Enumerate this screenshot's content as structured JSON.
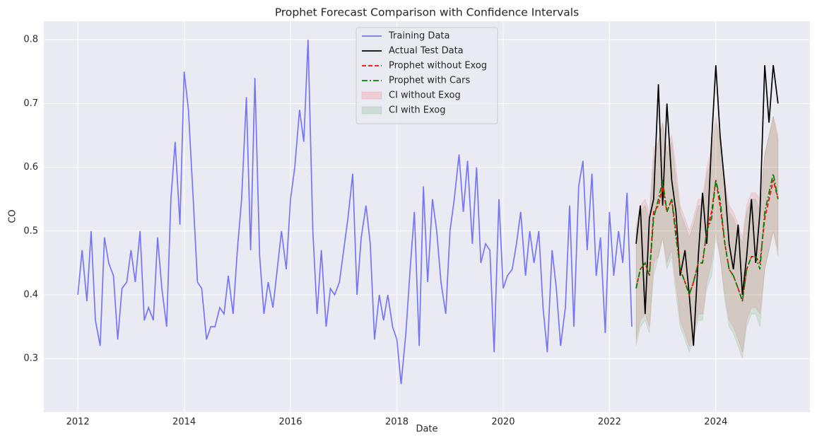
{
  "chart_data": {
    "type": "line",
    "title": "Prophet Forecast Comparison with Confidence Intervals",
    "x_label": "Date",
    "y_label": "CO",
    "xlim": [
      2011.36,
      2025.77
    ],
    "xticks": [
      2012,
      2014,
      2016,
      2018,
      2020,
      2022,
      2024
    ],
    "ylim": [
      0.216,
      0.829
    ],
    "yticks": [
      0.3,
      0.4,
      0.5,
      0.6,
      0.7,
      0.8
    ],
    "grid": true,
    "legend": "upper center",
    "x": [
      2022.5,
      2022.58,
      2022.67,
      2022.75,
      2022.83,
      2022.92,
      2023.0,
      2023.08,
      2023.17,
      2023.25,
      2023.33,
      2023.42,
      2023.5,
      2023.58,
      2023.67,
      2023.75,
      2023.83,
      2023.92,
      2024.0,
      2024.08,
      2024.17,
      2024.25,
      2024.33,
      2024.42,
      2024.5,
      2024.58,
      2024.67,
      2024.75,
      2024.83,
      2024.92,
      2025.0,
      2025.08,
      2025.17
    ],
    "series": [
      {
        "name": "Training Data",
        "color": "#0000ff",
        "alpha": 0.5,
        "dash": "solid",
        "x": [
          2012.0,
          2012.08,
          2012.17,
          2012.25,
          2012.33,
          2012.42,
          2012.5,
          2012.58,
          2012.67,
          2012.75,
          2012.83,
          2012.92,
          2013.0,
          2013.08,
          2013.17,
          2013.25,
          2013.33,
          2013.42,
          2013.5,
          2013.58,
          2013.67,
          2013.75,
          2013.83,
          2013.92,
          2014.0,
          2014.08,
          2014.17,
          2014.25,
          2014.33,
          2014.42,
          2014.5,
          2014.58,
          2014.67,
          2014.75,
          2014.83,
          2014.92,
          2015.0,
          2015.08,
          2015.17,
          2015.25,
          2015.33,
          2015.42,
          2015.5,
          2015.58,
          2015.67,
          2015.75,
          2015.83,
          2015.92,
          2016.0,
          2016.08,
          2016.17,
          2016.25,
          2016.33,
          2016.42,
          2016.5,
          2016.58,
          2016.67,
          2016.75,
          2016.83,
          2016.92,
          2017.0,
          2017.08,
          2017.17,
          2017.25,
          2017.33,
          2017.42,
          2017.5,
          2017.58,
          2017.67,
          2017.75,
          2017.83,
          2017.92,
          2018.0,
          2018.08,
          2018.17,
          2018.25,
          2018.33,
          2018.42,
          2018.5,
          2018.58,
          2018.67,
          2018.75,
          2018.83,
          2018.92,
          2019.0,
          2019.08,
          2019.17,
          2019.25,
          2019.33,
          2019.42,
          2019.5,
          2019.58,
          2019.67,
          2019.75,
          2019.83,
          2019.92,
          2020.0,
          2020.08,
          2020.17,
          2020.25,
          2020.33,
          2020.42,
          2020.5,
          2020.58,
          2020.67,
          2020.75,
          2020.83,
          2020.92,
          2021.0,
          2021.08,
          2021.17,
          2021.25,
          2021.33,
          2021.42,
          2021.5,
          2021.58,
          2021.67,
          2021.75,
          2021.83,
          2021.92,
          2022.0,
          2022.08,
          2022.17,
          2022.25,
          2022.33,
          2022.42
        ],
        "values": [
          0.4,
          0.47,
          0.39,
          0.5,
          0.36,
          0.32,
          0.49,
          0.45,
          0.43,
          0.33,
          0.41,
          0.42,
          0.47,
          0.42,
          0.5,
          0.36,
          0.38,
          0.36,
          0.49,
          0.41,
          0.35,
          0.55,
          0.64,
          0.51,
          0.75,
          0.69,
          0.55,
          0.42,
          0.41,
          0.33,
          0.35,
          0.35,
          0.38,
          0.37,
          0.43,
          0.37,
          0.47,
          0.55,
          0.71,
          0.47,
          0.74,
          0.46,
          0.37,
          0.42,
          0.38,
          0.44,
          0.5,
          0.44,
          0.55,
          0.6,
          0.69,
          0.64,
          0.8,
          0.5,
          0.37,
          0.47,
          0.35,
          0.41,
          0.4,
          0.42,
          0.47,
          0.52,
          0.59,
          0.4,
          0.49,
          0.54,
          0.48,
          0.33,
          0.4,
          0.36,
          0.4,
          0.35,
          0.33,
          0.26,
          0.34,
          0.44,
          0.53,
          0.32,
          0.57,
          0.42,
          0.55,
          0.5,
          0.42,
          0.37,
          0.5,
          0.55,
          0.62,
          0.53,
          0.61,
          0.48,
          0.6,
          0.45,
          0.48,
          0.47,
          0.31,
          0.55,
          0.41,
          0.43,
          0.44,
          0.48,
          0.53,
          0.43,
          0.5,
          0.45,
          0.5,
          0.38,
          0.31,
          0.47,
          0.41,
          0.32,
          0.38,
          0.54,
          0.35,
          0.57,
          0.61,
          0.47,
          0.59,
          0.43,
          0.49,
          0.34,
          0.53,
          0.43,
          0.5,
          0.45,
          0.56,
          0.35
        ]
      },
      {
        "name": "Actual Test Data",
        "color": "#000000",
        "alpha": 1,
        "dash": "solid",
        "values": [
          0.48,
          0.54,
          0.37,
          0.52,
          0.55,
          0.73,
          0.54,
          0.7,
          0.58,
          0.53,
          0.43,
          0.47,
          0.4,
          0.32,
          0.46,
          0.56,
          0.48,
          0.64,
          0.76,
          0.65,
          0.57,
          0.48,
          0.44,
          0.51,
          0.4,
          0.46,
          0.55,
          0.45,
          0.53,
          0.76,
          0.67,
          0.76,
          0.7
        ]
      },
      {
        "name": "Prophet without Exog",
        "color": "#ff0000",
        "alpha": 1,
        "dash": "dashed",
        "values": [
          0.41,
          0.44,
          0.45,
          0.43,
          0.53,
          0.54,
          0.57,
          0.53,
          0.55,
          0.5,
          0.44,
          0.42,
          0.4,
          0.42,
          0.45,
          0.45,
          0.5,
          0.53,
          0.58,
          0.54,
          0.48,
          0.44,
          0.43,
          0.41,
          0.39,
          0.44,
          0.46,
          0.46,
          0.45,
          0.52,
          0.55,
          0.58,
          0.55
        ]
      },
      {
        "name": "Prophet with Cars",
        "color": "#008000",
        "alpha": 1,
        "dash": "dashdot",
        "values": [
          0.41,
          0.44,
          0.45,
          0.43,
          0.52,
          0.55,
          0.58,
          0.53,
          0.55,
          0.49,
          0.44,
          0.42,
          0.4,
          0.42,
          0.45,
          0.45,
          0.5,
          0.52,
          0.58,
          0.55,
          0.48,
          0.44,
          0.43,
          0.41,
          0.39,
          0.44,
          0.46,
          0.46,
          0.44,
          0.53,
          0.56,
          0.59,
          0.55
        ]
      }
    ],
    "bands": [
      {
        "name": "CI without Exog",
        "color": "#ff0000",
        "alpha": 0.1,
        "lower": [
          0.33,
          0.36,
          0.37,
          0.35,
          0.45,
          0.46,
          0.49,
          0.45,
          0.47,
          0.42,
          0.36,
          0.34,
          0.32,
          0.34,
          0.37,
          0.37,
          0.42,
          0.45,
          0.5,
          0.46,
          0.4,
          0.36,
          0.35,
          0.33,
          0.31,
          0.36,
          0.38,
          0.38,
          0.37,
          0.44,
          0.47,
          0.5,
          0.47
        ],
        "upper": [
          0.51,
          0.54,
          0.55,
          0.53,
          0.63,
          0.64,
          0.67,
          0.63,
          0.65,
          0.6,
          0.54,
          0.52,
          0.5,
          0.52,
          0.55,
          0.55,
          0.6,
          0.63,
          0.68,
          0.64,
          0.58,
          0.54,
          0.53,
          0.51,
          0.49,
          0.54,
          0.56,
          0.56,
          0.55,
          0.62,
          0.65,
          0.68,
          0.65
        ]
      },
      {
        "name": "CI with Exog",
        "color": "#008000",
        "alpha": 0.1,
        "lower": [
          0.32,
          0.35,
          0.36,
          0.34,
          0.43,
          0.46,
          0.49,
          0.44,
          0.46,
          0.4,
          0.35,
          0.33,
          0.31,
          0.33,
          0.36,
          0.36,
          0.41,
          0.43,
          0.49,
          0.46,
          0.39,
          0.35,
          0.34,
          0.32,
          0.3,
          0.35,
          0.37,
          0.37,
          0.35,
          0.44,
          0.47,
          0.5,
          0.46
        ],
        "upper": [
          0.5,
          0.53,
          0.54,
          0.52,
          0.61,
          0.64,
          0.67,
          0.62,
          0.64,
          0.58,
          0.53,
          0.51,
          0.49,
          0.51,
          0.54,
          0.54,
          0.59,
          0.61,
          0.67,
          0.64,
          0.57,
          0.53,
          0.52,
          0.5,
          0.48,
          0.53,
          0.55,
          0.55,
          0.53,
          0.62,
          0.65,
          0.68,
          0.64
        ]
      }
    ]
  }
}
